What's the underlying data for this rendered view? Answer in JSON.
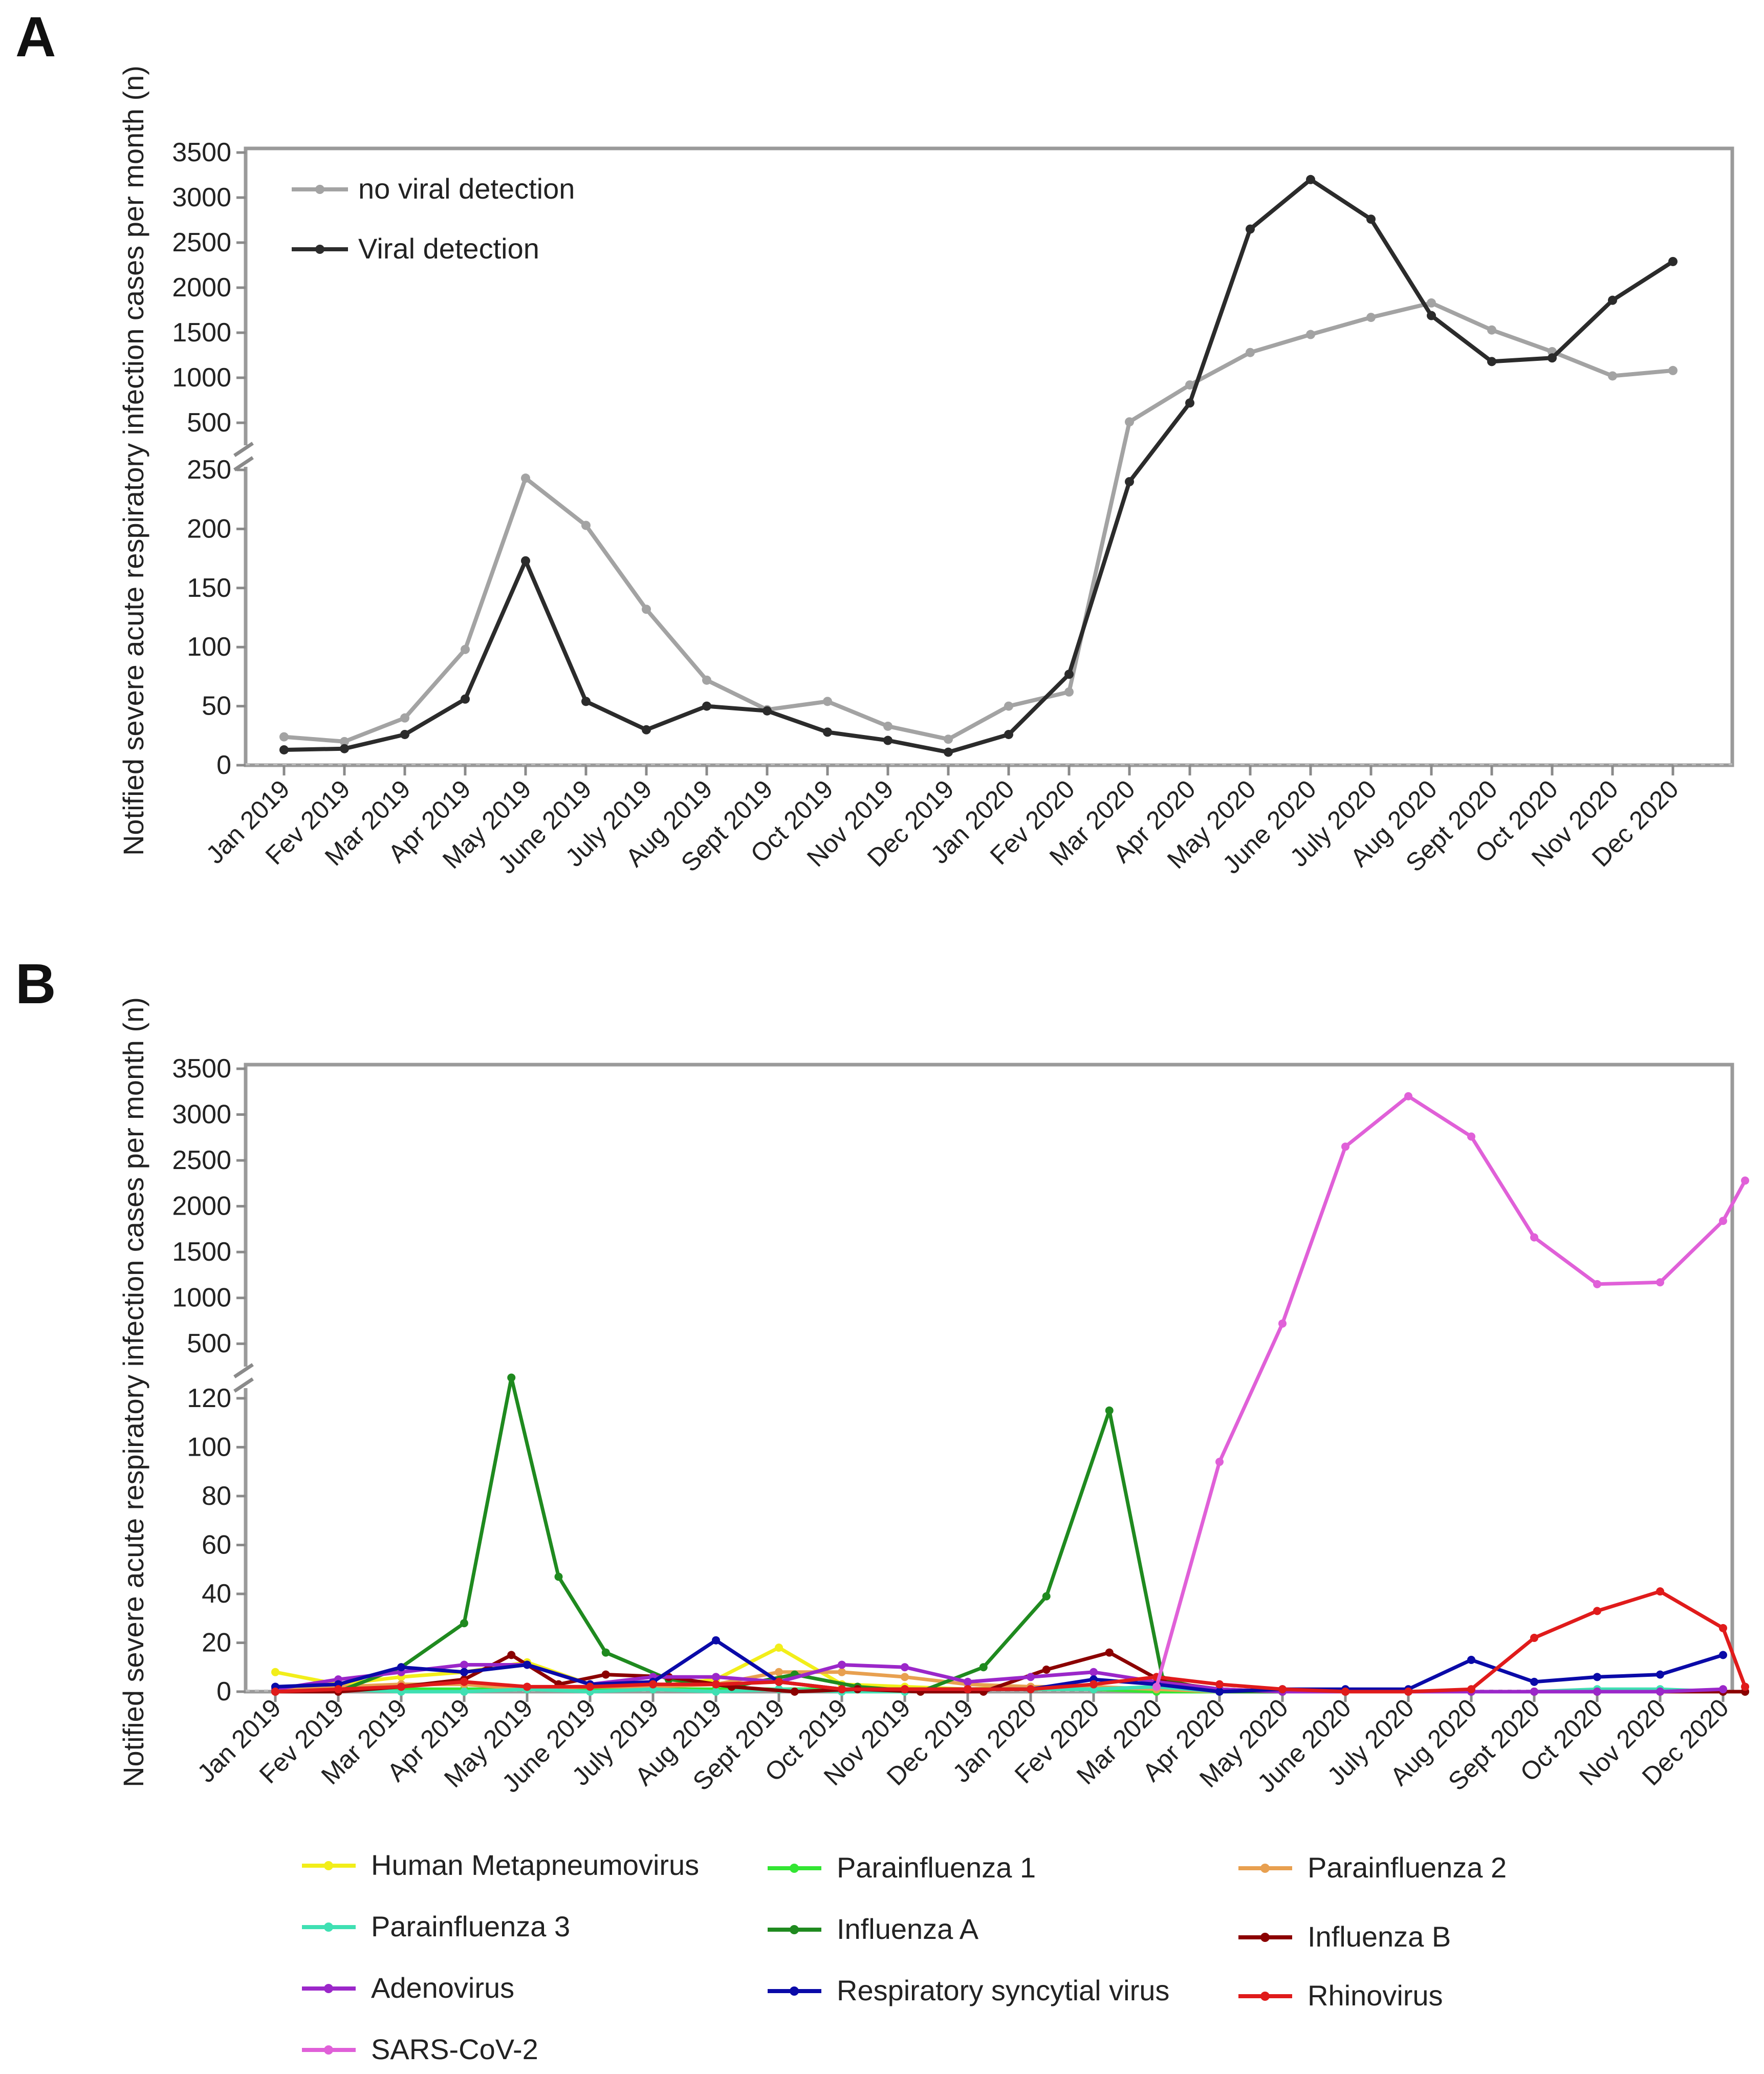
{
  "figure": {
    "panels": [
      "A",
      "B"
    ]
  },
  "colors": {
    "frame": "#9a9a9a",
    "axis": "#8a8a8a",
    "text": "#222222",
    "no_viral_detection": "#a3a3a3",
    "viral_detection": "#2b2b2b",
    "human_metapneumovirus": "#f2ee1a",
    "parainfluenza_1": "#33e633",
    "parainfluenza_2": "#e8a050",
    "parainfluenza_3": "#3fe0b3",
    "influenza_a": "#1f8a1f",
    "influenza_b": "#8b0000",
    "adenovirus": "#9b27c9",
    "respiratory_syncytial_virus": "#0a0aa8",
    "rhinovirus": "#e01b1b",
    "sars_cov_2": "#e060d8"
  },
  "chart_data": [
    {
      "panel": "A",
      "type": "line",
      "title": "",
      "xlabel": "",
      "ylabel": "Notified severe acute respiratory infection cases per month (n)",
      "categories": [
        "Jan 2019",
        "Fev 2019",
        "Mar 2019",
        "Apr 2019",
        "May 2019",
        "June 2019",
        "July 2019",
        "Aug 2019",
        "Sept 2019",
        "Oct 2019",
        "Nov 2019",
        "Dec 2019",
        "Jan 2020",
        "Fev 2020",
        "Mar 2020",
        "Apr 2020",
        "May 2020",
        "June 2020",
        "July 2020",
        "Aug 2020",
        "Sept 2020",
        "Oct 2020",
        "Nov 2020",
        "Dec 2020"
      ],
      "y_axis_break": true,
      "lower_ylim": [
        0,
        250
      ],
      "lower_ticks": [
        0,
        50,
        100,
        150,
        200,
        250
      ],
      "upper_ylim": [
        250,
        3500
      ],
      "upper_ticks": [
        500,
        1000,
        1500,
        2000,
        2500,
        3000,
        3500
      ],
      "legend_position": "top-left",
      "series": [
        {
          "name": "no viral detection",
          "color_key": "no_viral_detection",
          "values": [
            24,
            20,
            40,
            98,
            243,
            203,
            132,
            72,
            47,
            54,
            33,
            22,
            50,
            62,
            510,
            920,
            1280,
            1480,
            1670,
            1830,
            1530,
            1290,
            1020,
            1080
          ]
        },
        {
          "name": "Viral detection",
          "color_key": "viral_detection",
          "values": [
            13,
            14,
            26,
            56,
            173,
            54,
            30,
            50,
            46,
            28,
            21,
            11,
            26,
            77,
            240,
            720,
            2650,
            3200,
            2760,
            1690,
            1180,
            1220,
            1860,
            2290
          ]
        }
      ]
    },
    {
      "panel": "B",
      "type": "line",
      "title": "",
      "xlabel": "",
      "ylabel": "Notified severe acute respiratory infection cases per month (n)",
      "categories": [
        "Jan 2019",
        "Fev 2019",
        "Mar 2019",
        "Apr 2019",
        "May 2019",
        "June 2019",
        "July 2019",
        "Aug 2019",
        "Sept 2019",
        "Oct 2019",
        "Nov 2019",
        "Dec 2019",
        "Jan 2020",
        "Fev 2020",
        "Mar 2020",
        "Apr 2020",
        "May 2020",
        "June 2020",
        "July 2020",
        "Aug 2020",
        "Sept 2020",
        "Oct 2020",
        "Nov 2020",
        "Dec 2020"
      ],
      "y_axis_break": true,
      "lower_ylim": [
        0,
        125
      ],
      "lower_ticks": [
        0,
        20,
        40,
        60,
        80,
        100,
        120
      ],
      "upper_ylim": [
        250,
        3500
      ],
      "upper_ticks": [
        500,
        1000,
        1500,
        2000,
        2500,
        3000,
        3500
      ],
      "legend_position": "bottom",
      "series": [
        {
          "name": "Human Metapneumovirus",
          "color_key": "human_metapneumovirus",
          "x": [
            0,
            1,
            2,
            3,
            4,
            5,
            6,
            7,
            8,
            9,
            10,
            11,
            12,
            13,
            14,
            15,
            16,
            17,
            18,
            19,
            20,
            21,
            22,
            23
          ],
          "values": [
            8,
            3,
            6,
            8,
            12,
            3,
            2,
            5,
            18,
            3,
            2,
            1,
            2,
            1,
            1,
            1,
            0,
            0,
            0,
            0,
            0,
            0,
            0,
            0
          ]
        },
        {
          "name": "Parainfluenza 1",
          "color_key": "parainfluenza_1",
          "x": [
            0,
            1,
            2,
            3,
            4,
            5,
            6,
            7,
            8,
            9,
            10,
            11,
            12,
            13,
            14,
            15,
            16,
            17,
            18,
            19,
            20,
            21,
            22,
            23
          ],
          "values": [
            1,
            1,
            1,
            1,
            1,
            1,
            1,
            1,
            1,
            1,
            1,
            1,
            1,
            1,
            0,
            0,
            0,
            0,
            0,
            0,
            0,
            0,
            0,
            0
          ]
        },
        {
          "name": "Parainfluenza 2",
          "color_key": "parainfluenza_2",
          "x": [
            0,
            1,
            2,
            3,
            4,
            5,
            6,
            7,
            8,
            9,
            10,
            11,
            12,
            13,
            14,
            15,
            16,
            17,
            18,
            19,
            20,
            21,
            22,
            23
          ],
          "values": [
            1,
            2,
            3,
            3,
            1,
            2,
            2,
            3,
            8,
            8,
            6,
            3,
            2,
            2,
            1,
            0,
            0,
            0,
            0,
            0,
            0,
            0,
            0,
            0
          ]
        },
        {
          "name": "Parainfluenza 3",
          "color_key": "parainfluenza_3",
          "x": [
            0,
            1,
            2,
            3,
            4,
            5,
            6,
            7,
            8,
            9,
            10,
            11,
            12,
            13,
            14,
            15,
            16,
            17,
            18,
            19,
            20,
            21,
            22,
            23
          ],
          "values": [
            0,
            1,
            0,
            0,
            1,
            0,
            1,
            0,
            1,
            0,
            0,
            1,
            1,
            1,
            2,
            0,
            0,
            0,
            0,
            0,
            0,
            1,
            1,
            0
          ]
        },
        {
          "name": "Influenza A",
          "color_key": "influenza_a",
          "x": [
            0,
            1,
            2,
            3,
            3.75,
            4.5,
            5.25,
            6.25,
            7.25,
            8.25,
            9.25,
            10.25,
            11.25,
            12.25,
            13.25,
            14.1,
            15,
            16,
            17,
            18,
            19,
            20,
            21,
            22,
            23,
            23.35
          ],
          "values": [
            0,
            0,
            10,
            28,
            130,
            47,
            16,
            5,
            2,
            7,
            2,
            0,
            10,
            39,
            115,
            5,
            0,
            0,
            0,
            0,
            0,
            0,
            0,
            0,
            0,
            0
          ]
        },
        {
          "name": "Influenza B",
          "color_key": "influenza_b",
          "x": [
            0,
            1,
            2,
            3,
            3.75,
            4.5,
            5.25,
            6.25,
            7.25,
            8.25,
            9.25,
            10.25,
            11.25,
            12.25,
            13.25,
            14.1,
            15,
            16,
            17,
            18,
            19,
            20,
            21,
            22,
            23,
            23.35
          ],
          "values": [
            0,
            0,
            2,
            5,
            15,
            3,
            7,
            6,
            2,
            0,
            1,
            0,
            0,
            9,
            16,
            4,
            1,
            0,
            0,
            0,
            0,
            0,
            0,
            0,
            0,
            0
          ]
        },
        {
          "name": "Adenovirus",
          "color_key": "adenovirus",
          "x": [
            0,
            1,
            2,
            3,
            4,
            5,
            6,
            7,
            8,
            9,
            10,
            11,
            12,
            13,
            14,
            15,
            16,
            17,
            18,
            19,
            20,
            21,
            22,
            23
          ],
          "values": [
            1,
            5,
            8,
            11,
            11,
            3,
            6,
            6,
            4,
            11,
            10,
            4,
            6,
            8,
            4,
            1,
            0,
            0,
            0,
            0,
            0,
            0,
            0,
            1
          ]
        },
        {
          "name": "Respiratory syncytial virus",
          "color_key": "respiratory_syncytial_virus",
          "x": [
            0,
            1,
            2,
            3,
            4,
            5,
            6,
            7,
            8,
            9,
            10,
            11,
            12,
            13,
            14,
            15,
            16,
            17,
            18,
            19,
            20,
            21,
            22,
            23
          ],
          "values": [
            2,
            3,
            10,
            8,
            11,
            3,
            4,
            21,
            4,
            1,
            1,
            1,
            1,
            5,
            3,
            0,
            1,
            1,
            1,
            13,
            4,
            6,
            7,
            15
          ]
        },
        {
          "name": "Rhinovirus",
          "color_key": "rhinovirus",
          "x": [
            0,
            1,
            2,
            3,
            4,
            5,
            6,
            7,
            8,
            9,
            10,
            11,
            12,
            13,
            14,
            15,
            16,
            17,
            18,
            19,
            20,
            21,
            22,
            23,
            23.35
          ],
          "values": [
            0,
            1,
            2,
            4,
            2,
            2,
            3,
            3,
            4,
            1,
            1,
            1,
            1,
            3,
            6,
            3,
            1,
            0,
            0,
            1,
            22,
            33,
            41,
            26,
            2
          ]
        },
        {
          "name": "SARS-CoV-2",
          "color_key": "sars_cov_2",
          "x": [
            14,
            15,
            16,
            17,
            18,
            19,
            20,
            21,
            22,
            23,
            23.35
          ],
          "values": [
            2,
            94,
            720,
            2650,
            3200,
            2760,
            1660,
            1150,
            1170,
            1840,
            2280
          ]
        }
      ]
    }
  ]
}
